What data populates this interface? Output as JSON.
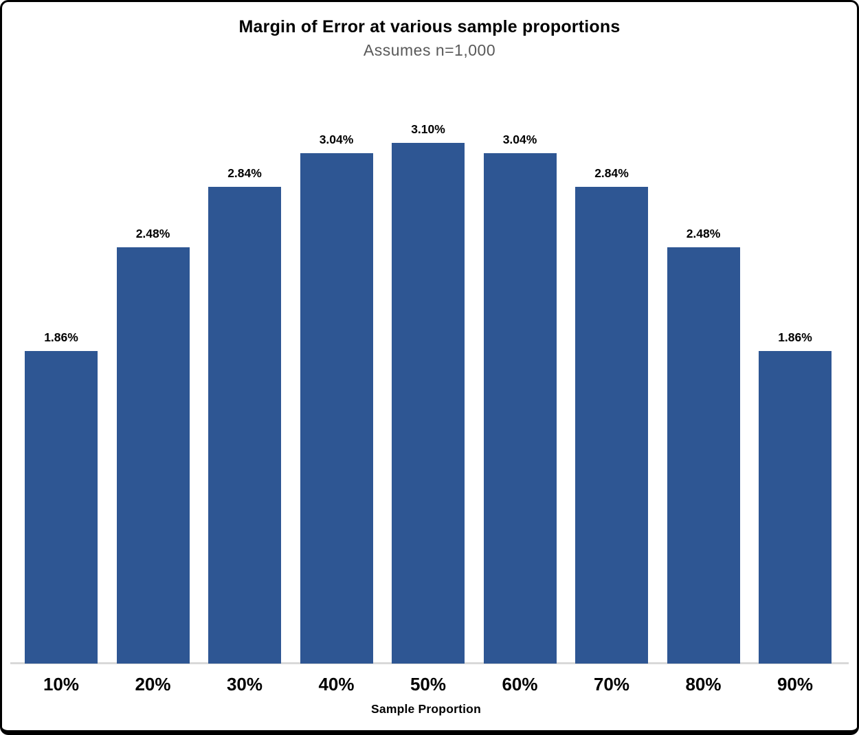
{
  "chart_data": {
    "type": "bar",
    "title": "Margin of Error at various sample proportions",
    "subtitle": "Assumes n=1,000",
    "xlabel": "Sample Proportion",
    "ylabel": "",
    "categories": [
      "10%",
      "20%",
      "30%",
      "40%",
      "50%",
      "60%",
      "70%",
      "80%",
      "90%"
    ],
    "values": [
      1.86,
      2.48,
      2.84,
      3.04,
      3.1,
      3.04,
      2.84,
      2.48,
      1.86
    ],
    "value_labels": [
      "1.86%",
      "2.48%",
      "2.84%",
      "3.04%",
      "3.10%",
      "3.04%",
      "2.84%",
      "2.48%",
      "1.86%"
    ],
    "ylim": [
      0,
      3.1
    ],
    "grid": false,
    "legend_position": "none",
    "colors": {
      "bar": "#2E5693",
      "axis_line": "#D9D9D9",
      "title_text": "#000000",
      "subtitle_text": "#595959",
      "label_text": "#000000",
      "frame_border": "#000000",
      "background": "#FFFFFF"
    }
  }
}
